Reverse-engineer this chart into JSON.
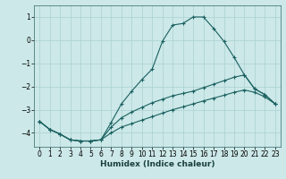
{
  "xlabel": "Humidex (Indice chaleur)",
  "background_color": "#cce8e8",
  "grid_color": "#aad0d0",
  "line_color": "#1a6060",
  "series": [
    {
      "x": [
        0,
        1,
        2,
        3,
        4,
        5,
        6,
        7,
        8,
        9,
        10,
        11,
        12,
        13,
        14,
        15,
        16,
        17,
        18,
        19,
        20,
        21,
        22,
        23
      ],
      "y": [
        -3.5,
        -3.85,
        -4.05,
        -4.3,
        -4.35,
        -4.35,
        -4.3,
        -3.55,
        -2.75,
        -2.2,
        -1.7,
        -1.25,
        -0.05,
        0.65,
        0.72,
        1.0,
        1.0,
        0.5,
        -0.05,
        -0.75,
        -1.5,
        -2.1,
        -2.35,
        -2.75
      ]
    },
    {
      "x": [
        0,
        1,
        2,
        3,
        4,
        5,
        6,
        7,
        8,
        9,
        10,
        11,
        12,
        13,
        14,
        15,
        16,
        17,
        18,
        19,
        20,
        21,
        22,
        23
      ],
      "y": [
        -3.5,
        -3.85,
        -4.05,
        -4.3,
        -4.35,
        -4.35,
        -4.3,
        -3.75,
        -3.35,
        -3.1,
        -2.9,
        -2.7,
        -2.55,
        -2.4,
        -2.3,
        -2.2,
        -2.05,
        -1.9,
        -1.75,
        -1.6,
        -1.5,
        -2.1,
        -2.35,
        -2.75
      ]
    },
    {
      "x": [
        0,
        1,
        2,
        3,
        4,
        5,
        6,
        7,
        8,
        9,
        10,
        11,
        12,
        13,
        14,
        15,
        16,
        17,
        18,
        19,
        20,
        21,
        22,
        23
      ],
      "y": [
        -3.5,
        -3.85,
        -4.05,
        -4.3,
        -4.35,
        -4.35,
        -4.3,
        -4.0,
        -3.75,
        -3.6,
        -3.45,
        -3.3,
        -3.15,
        -3.0,
        -2.88,
        -2.75,
        -2.62,
        -2.5,
        -2.38,
        -2.25,
        -2.15,
        -2.25,
        -2.45,
        -2.75
      ]
    }
  ],
  "xlim": [
    -0.5,
    23.5
  ],
  "ylim": [
    -4.6,
    1.5
  ],
  "yticks": [
    -4,
    -3,
    -2,
    -1,
    0,
    1
  ],
  "xticks": [
    0,
    1,
    2,
    3,
    4,
    5,
    6,
    7,
    8,
    9,
    10,
    11,
    12,
    13,
    14,
    15,
    16,
    17,
    18,
    19,
    20,
    21,
    22,
    23
  ]
}
